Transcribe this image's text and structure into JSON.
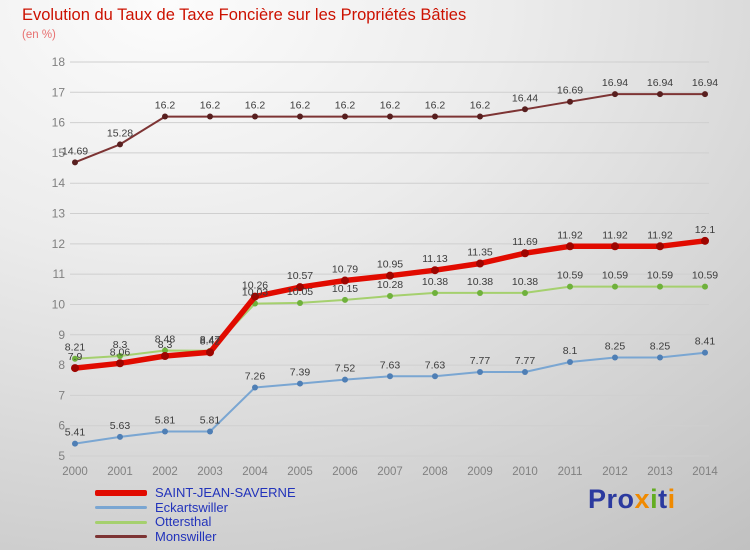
{
  "header": {
    "title": "Evolution du Taux de Taxe Foncière sur les Propriétés Bâties",
    "subtitle": "(en %)"
  },
  "chart_data": {
    "type": "line",
    "x": [
      2000,
      2001,
      2002,
      2003,
      2004,
      2005,
      2006,
      2007,
      2008,
      2009,
      2010,
      2011,
      2012,
      2013,
      2014
    ],
    "ylim": [
      5,
      18
    ],
    "ytick_step": 1,
    "grid": true,
    "legend_position": "bottom-left",
    "title": "Evolution du Taux de Taxe Foncière sur les Propriétés Bâties",
    "ylabel": "en %",
    "draw_order": [
      3,
      1,
      2,
      0
    ],
    "series": [
      {
        "name": "SAINT-JEAN-SAVERNE",
        "color": "#e10b00",
        "marker_color": "#9e0500",
        "line_width": 5.5,
        "marker_radius": 4,
        "values": [
          7.9,
          8.06,
          8.3,
          8.42,
          10.26,
          10.57,
          10.79,
          10.95,
          11.13,
          11.35,
          11.69,
          11.92,
          11.92,
          11.92,
          12.1
        ]
      },
      {
        "name": "Eckartswiller",
        "color": "#7aa6d2",
        "marker_color": "#4f7fb5",
        "line_width": 2,
        "marker_radius": 3,
        "values": [
          5.41,
          5.63,
          5.81,
          5.81,
          7.26,
          7.39,
          7.52,
          7.63,
          7.63,
          7.77,
          7.77,
          8.1,
          8.25,
          8.25,
          8.41
        ]
      },
      {
        "name": "Ottersthal",
        "color": "#a5d06e",
        "marker_color": "#6fb13c",
        "line_width": 2,
        "marker_radius": 3,
        "values": [
          8.21,
          8.3,
          8.48,
          8.47,
          10.03,
          10.05,
          10.15,
          10.28,
          10.38,
          10.38,
          10.38,
          10.59,
          10.59,
          10.59,
          10.59
        ]
      },
      {
        "name": "Monswiller",
        "color": "#7d3434",
        "marker_color": "#581f1f",
        "line_width": 2,
        "marker_radius": 3,
        "values": [
          14.69,
          15.28,
          16.2,
          16.2,
          16.2,
          16.2,
          16.2,
          16.2,
          16.2,
          16.2,
          16.44,
          16.69,
          16.94,
          16.94,
          16.94
        ]
      }
    ]
  },
  "style": {
    "grid_color": "#cfcfcf",
    "tick_color": "#808080",
    "point_label_color": "#3c3c3c"
  },
  "logo": {
    "letters": [
      {
        "ch": "P",
        "color": "#2b3a9f"
      },
      {
        "ch": "r",
        "color": "#2b3a9f"
      },
      {
        "ch": "o",
        "color": "#2b3a9f"
      },
      {
        "ch": "x",
        "color": "#f08a00"
      },
      {
        "ch": "i",
        "color": "#63ad21"
      },
      {
        "ch": "t",
        "color": "#2b3a9f"
      },
      {
        "ch": "i",
        "color": "#f08a00"
      }
    ]
  }
}
